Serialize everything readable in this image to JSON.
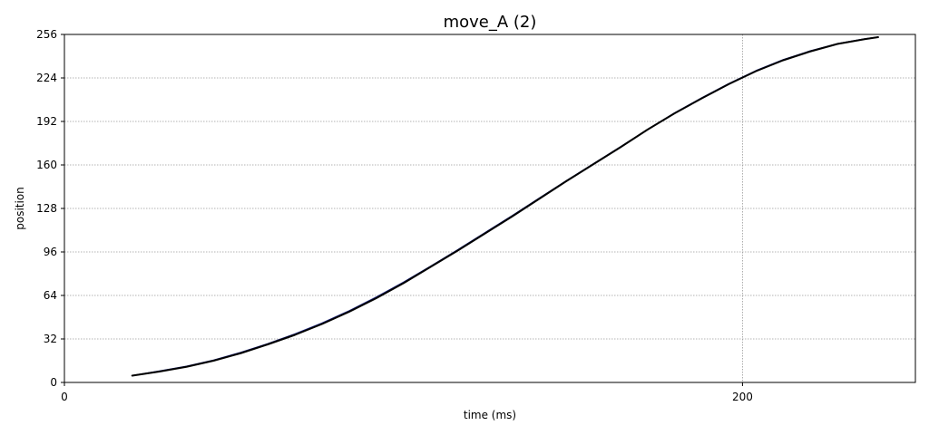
{
  "chart_data": {
    "type": "line",
    "title": "move_A (2)",
    "xlabel": "time (ms)",
    "ylabel": "position",
    "xlim": [
      0,
      251
    ],
    "ylim": [
      0,
      256
    ],
    "xticks": [
      0,
      200
    ],
    "yticks": [
      0,
      32,
      64,
      96,
      128,
      160,
      192,
      224,
      256
    ],
    "grid": true,
    "legend": "none",
    "series": [
      {
        "color": "#000000",
        "x": [
          20,
          28,
          36,
          44,
          52,
          60,
          68,
          76,
          84,
          92,
          100,
          108,
          116,
          124,
          132,
          140,
          148,
          156,
          164,
          172,
          180,
          188,
          196,
          204,
          212,
          220,
          228,
          236,
          240
        ],
        "y": [
          5,
          8,
          11.5,
          16,
          21.5,
          28,
          35,
          43,
          52,
          62,
          73,
          85,
          97,
          109.5,
          122,
          135,
          148,
          160.5,
          173,
          186,
          198,
          209,
          219.5,
          229,
          237,
          243.5,
          249,
          252.5,
          254
        ]
      },
      {
        "color": "#1a237e",
        "x": [
          20,
          28,
          36,
          44,
          52,
          60,
          68,
          76,
          84,
          92,
          100,
          108,
          116,
          124,
          132,
          140,
          148,
          156,
          164,
          172,
          180,
          188,
          196,
          204,
          212,
          220,
          228,
          236,
          240
        ],
        "y": [
          5,
          8.3,
          11.8,
          16.3,
          22,
          28.4,
          35.6,
          43.6,
          52.6,
          62.7,
          73.6,
          85.4,
          97.5,
          110,
          122.5,
          135.4,
          148.2,
          160.7,
          173.2,
          186,
          198.2,
          209.3,
          219.8,
          229.3,
          237.3,
          243.8,
          249.1,
          252.6,
          254
        ]
      }
    ]
  }
}
